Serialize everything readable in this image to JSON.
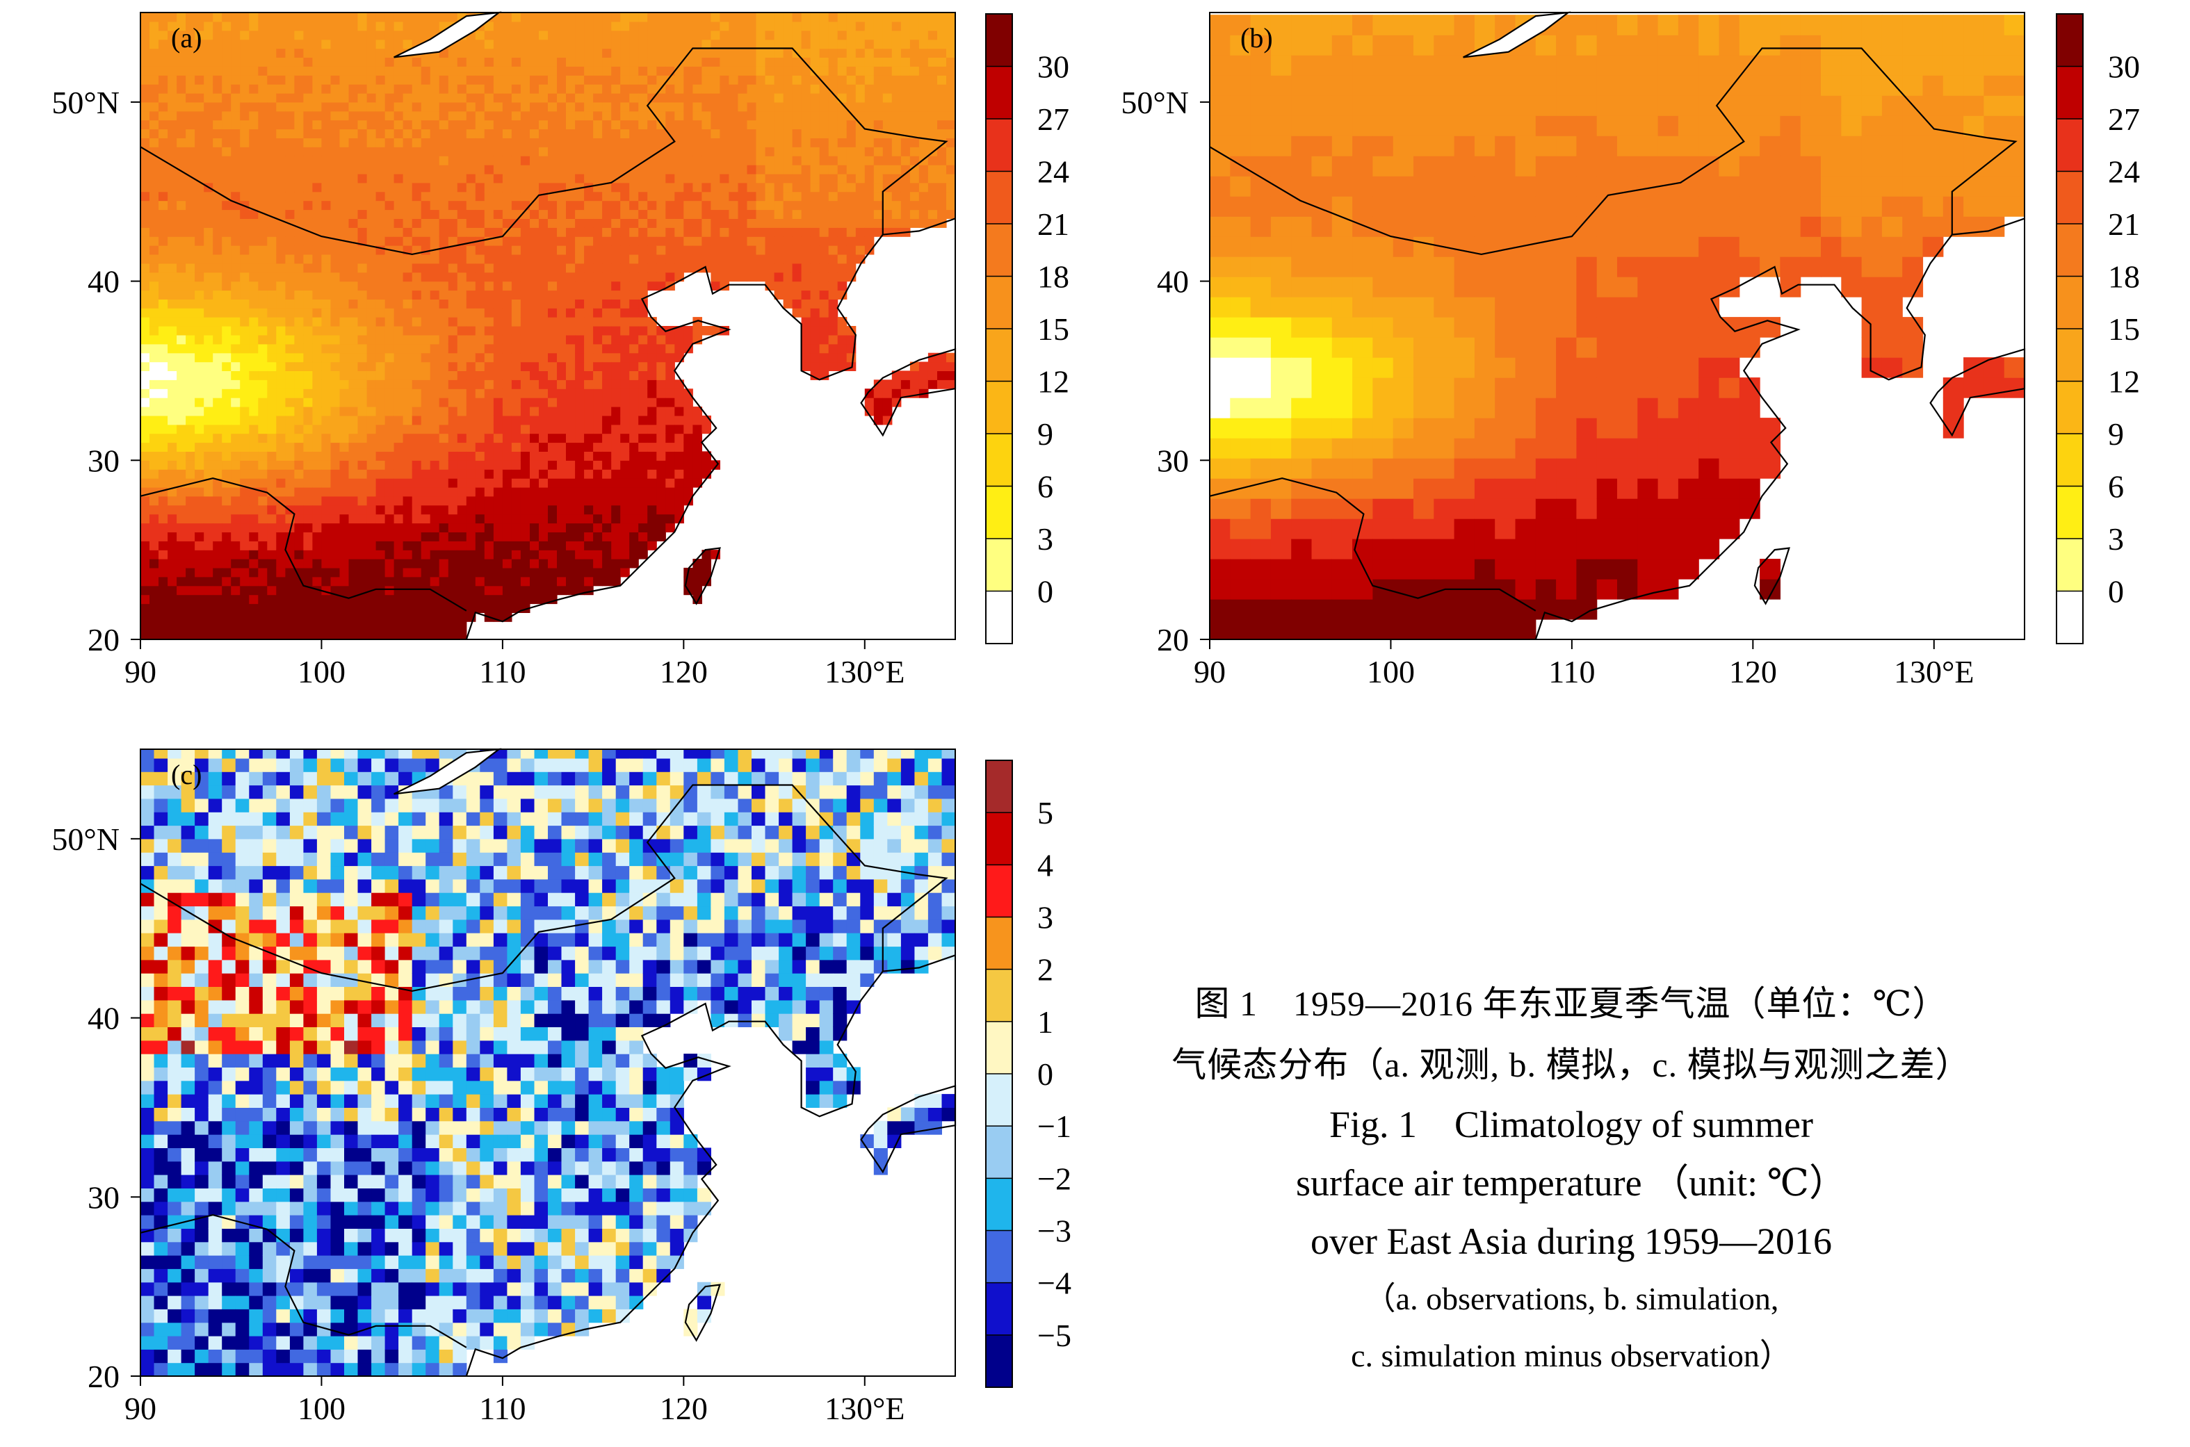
{
  "chart_data": [
    {
      "id": "a",
      "type": "heatmap",
      "panel_label": "(a)",
      "title": "observations",
      "xlabel": "",
      "ylabel": "",
      "x_range": [
        90,
        135
      ],
      "y_range": [
        20,
        55
      ],
      "x_ticks": [
        90,
        100,
        110,
        120,
        130
      ],
      "x_tick_labels": [
        "90",
        "100",
        "110",
        "120",
        "130°E"
      ],
      "y_ticks": [
        20,
        30,
        40,
        50
      ],
      "y_tick_labels": [
        "20",
        "30",
        "40",
        "50°N"
      ],
      "colorbar_levels": [
        "30",
        "27",
        "24",
        "21",
        "18",
        "15",
        "12",
        "9",
        "6",
        "3",
        "0"
      ],
      "colorbar_colors": [
        "#800000",
        "#bf0000",
        "#e8321b",
        "#f05a1c",
        "#f47a1e",
        "#f7911c",
        "#f9a51b",
        "#fbb616",
        "#fdd30f",
        "#ffee14",
        "#ffff80",
        "#ffffff"
      ],
      "unit": "°C"
    },
    {
      "id": "b",
      "type": "heatmap",
      "panel_label": "(b)",
      "title": "simulation",
      "xlabel": "",
      "ylabel": "",
      "x_range": [
        90,
        135
      ],
      "y_range": [
        20,
        55
      ],
      "x_ticks": [
        90,
        100,
        110,
        120,
        130
      ],
      "x_tick_labels": [
        "90",
        "100",
        "110",
        "120",
        "130°E"
      ],
      "y_ticks": [
        20,
        30,
        40,
        50
      ],
      "y_tick_labels": [
        "20",
        "30",
        "40",
        "50°N"
      ],
      "colorbar_levels": [
        "30",
        "27",
        "24",
        "21",
        "18",
        "15",
        "12",
        "9",
        "6",
        "3",
        "0"
      ],
      "colorbar_colors": [
        "#800000",
        "#bf0000",
        "#e8321b",
        "#f05a1c",
        "#f47a1e",
        "#f7911c",
        "#f9a51b",
        "#fbb616",
        "#fdd30f",
        "#ffee14",
        "#ffff80",
        "#ffffff"
      ],
      "unit": "°C"
    },
    {
      "id": "c",
      "type": "heatmap",
      "panel_label": "(c)",
      "title": "simulation minus observation",
      "xlabel": "",
      "ylabel": "",
      "x_range": [
        90,
        135
      ],
      "y_range": [
        20,
        55
      ],
      "x_ticks": [
        90,
        100,
        110,
        120,
        130
      ],
      "x_tick_labels": [
        "90",
        "100",
        "110",
        "120",
        "130°E"
      ],
      "y_ticks": [
        20,
        30,
        40,
        50
      ],
      "y_tick_labels": [
        "20",
        "30",
        "40",
        "50°N"
      ],
      "colorbar_levels": [
        "5",
        "4",
        "3",
        "2",
        "1",
        "0",
        "−1",
        "−2",
        "−3",
        "−4",
        "−5"
      ],
      "colorbar_colors": [
        "#a52a2a",
        "#cc0000",
        "#ff1a1a",
        "#f7941d",
        "#f5c842",
        "#fff7c2",
        "#d6f0fb",
        "#99ccf2",
        "#1fb5ec",
        "#4169e1",
        "#1010cc",
        "#00008b"
      ],
      "unit": "°C"
    }
  ],
  "caption": {
    "zh_line1": "图 1　1959—2016 年东亚夏季气温（单位：℃）",
    "zh_line2": "气候态分布（a. 观测, b. 模拟，c. 模拟与观测之差）",
    "en_line1": "Fig. 1　Climatology of summer",
    "en_line2": "surface air temperature （unit: ℃）",
    "en_line3": "over East Asia during 1959—2016",
    "en_line4": "（a. observations, b. simulation,",
    "en_line5": "c. simulation minus observation）"
  },
  "colors": {
    "coastline": "#000000",
    "ocean": "#ffffff"
  }
}
